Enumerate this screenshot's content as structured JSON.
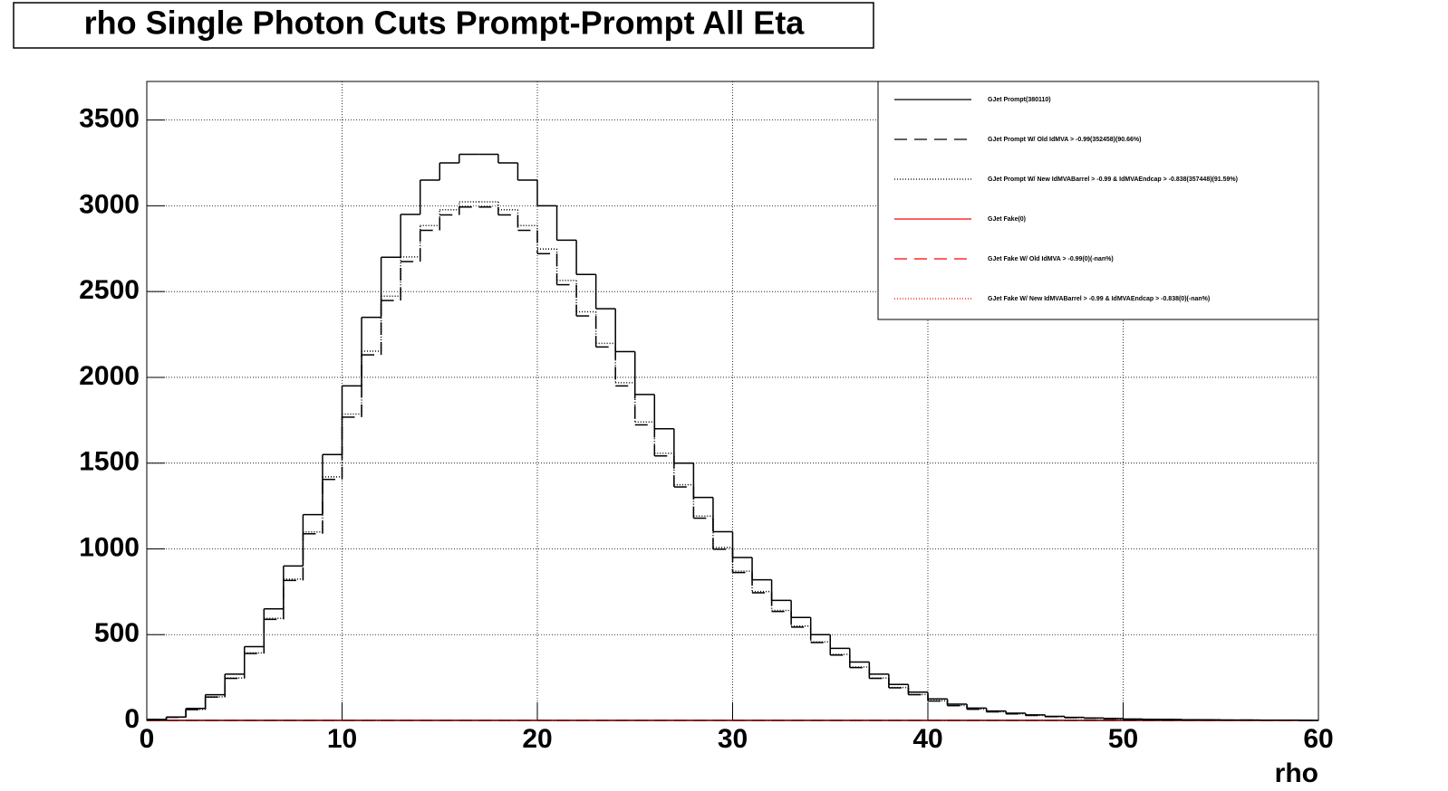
{
  "chart_data": {
    "type": "histogram",
    "title": "rho Single Photon Cuts Prompt-Prompt All Eta",
    "x_label": "rho",
    "bins": [
      0,
      1,
      2,
      3,
      4,
      5,
      6,
      7,
      8,
      9,
      10,
      11,
      12,
      13,
      14,
      15,
      16,
      17,
      18,
      19,
      20,
      21,
      22,
      23,
      24,
      25,
      26,
      27,
      28,
      29,
      30,
      31,
      32,
      33,
      34,
      35,
      36,
      37,
      38,
      39,
      40,
      41,
      42,
      43,
      44,
      45,
      46,
      47,
      48,
      49,
      50,
      51,
      52,
      53,
      54,
      55,
      56,
      57,
      58,
      59,
      60
    ],
    "xlim": [
      0,
      60
    ],
    "xticks": [
      0,
      10,
      20,
      30,
      40,
      50,
      60
    ],
    "ylim": [
      0,
      3725
    ],
    "yticks": [
      0,
      500,
      1000,
      1500,
      2000,
      2500,
      3000,
      3500
    ],
    "grid": true,
    "legend": "upper right",
    "series": [
      {
        "name": "GJet Fake(0)",
        "color": "#ff0000",
        "line_style": "solid",
        "values": [
          0,
          0,
          0,
          0,
          0,
          0,
          0,
          0,
          0,
          0,
          0,
          0,
          0,
          0,
          0,
          0,
          0,
          0,
          0,
          0,
          0,
          0,
          0,
          0,
          0,
          0,
          0,
          0,
          0,
          0,
          0,
          0,
          0,
          0,
          0,
          0,
          0,
          0,
          0,
          0,
          0,
          0,
          0,
          0,
          0,
          0,
          0,
          0,
          0,
          0,
          0,
          0,
          0,
          0,
          0,
          0,
          0,
          0,
          0,
          0
        ]
      },
      {
        "name": "GJet Fake W/ Old IdMVA > -0.99(0)(-nan%)",
        "color": "#ff0000",
        "line_style": "dashed",
        "values": [
          0,
          0,
          0,
          0,
          0,
          0,
          0,
          0,
          0,
          0,
          0,
          0,
          0,
          0,
          0,
          0,
          0,
          0,
          0,
          0,
          0,
          0,
          0,
          0,
          0,
          0,
          0,
          0,
          0,
          0,
          0,
          0,
          0,
          0,
          0,
          0,
          0,
          0,
          0,
          0,
          0,
          0,
          0,
          0,
          0,
          0,
          0,
          0,
          0,
          0,
          0,
          0,
          0,
          0,
          0,
          0,
          0,
          0,
          0,
          0
        ]
      },
      {
        "name": "GJet Fake W/ New IdMVABarrel > -0.99 & IdMVAEndcap > -0.838(0)(-nan%)",
        "color": "#ff0000",
        "line_style": "dotted",
        "values": [
          0,
          0,
          0,
          0,
          0,
          0,
          0,
          0,
          0,
          0,
          0,
          0,
          0,
          0,
          0,
          0,
          0,
          0,
          0,
          0,
          0,
          0,
          0,
          0,
          0,
          0,
          0,
          0,
          0,
          0,
          0,
          0,
          0,
          0,
          0,
          0,
          0,
          0,
          0,
          0,
          0,
          0,
          0,
          0,
          0,
          0,
          0,
          0,
          0,
          0,
          0,
          0,
          0,
          0,
          0,
          0,
          0,
          0,
          0,
          0
        ]
      },
      {
        "name": "GJet Prompt W/ New IdMVABarrel > -0.99 & IdMVAEndcap > -0.838(357448)(91.59%)",
        "color": "#000000",
        "line_style": "dotted",
        "values": [
          5,
          18,
          64,
          137,
          247,
          394,
          595,
          824,
          1099,
          1420,
          1786,
          2153,
          2473,
          2702,
          2885,
          2977,
          3023,
          3023,
          2977,
          2885,
          2748,
          2565,
          2382,
          2198,
          1969,
          1740,
          1557,
          1374,
          1191,
          1008,
          870,
          751,
          641,
          550,
          458,
          385,
          311,
          247,
          192,
          151,
          115,
          87,
          66,
          50,
          38,
          29,
          22,
          16,
          13,
          10,
          7,
          5,
          5,
          4,
          3,
          2,
          2,
          1,
          1,
          0
        ]
      },
      {
        "name": "GJet Prompt W/ Old IdMVA > -0.99(352458)(90.66%)",
        "color": "#000000",
        "line_style": "dashed",
        "values": [
          5,
          18,
          63,
          136,
          245,
          390,
          589,
          816,
          1088,
          1405,
          1768,
          2131,
          2448,
          2675,
          2857,
          2947,
          2993,
          2993,
          2947,
          2857,
          2721,
          2540,
          2358,
          2177,
          1950,
          1723,
          1542,
          1361,
          1179,
          998,
          862,
          744,
          635,
          544,
          454,
          381,
          308,
          245,
          190,
          150,
          113,
          86,
          65,
          50,
          38,
          29,
          22,
          16,
          13,
          10,
          7,
          5,
          5,
          4,
          3,
          2,
          2,
          1,
          1,
          0
        ]
      },
      {
        "name": "GJet Prompt(380110)",
        "color": "#000000",
        "line_style": "solid",
        "values": [
          5,
          20,
          70,
          150,
          270,
          430,
          650,
          900,
          1200,
          1550,
          1950,
          2350,
          2700,
          2950,
          3150,
          3250,
          3300,
          3300,
          3250,
          3150,
          3000,
          2800,
          2600,
          2400,
          2150,
          1900,
          1700,
          1500,
          1300,
          1100,
          950,
          820,
          700,
          600,
          500,
          420,
          340,
          270,
          210,
          165,
          125,
          95,
          72,
          55,
          42,
          32,
          24,
          18,
          14,
          11,
          8,
          6,
          5,
          4,
          3,
          2,
          2,
          1,
          1,
          0
        ]
      }
    ],
    "legend_order": [
      5,
      4,
      3,
      0,
      1,
      2
    ]
  }
}
